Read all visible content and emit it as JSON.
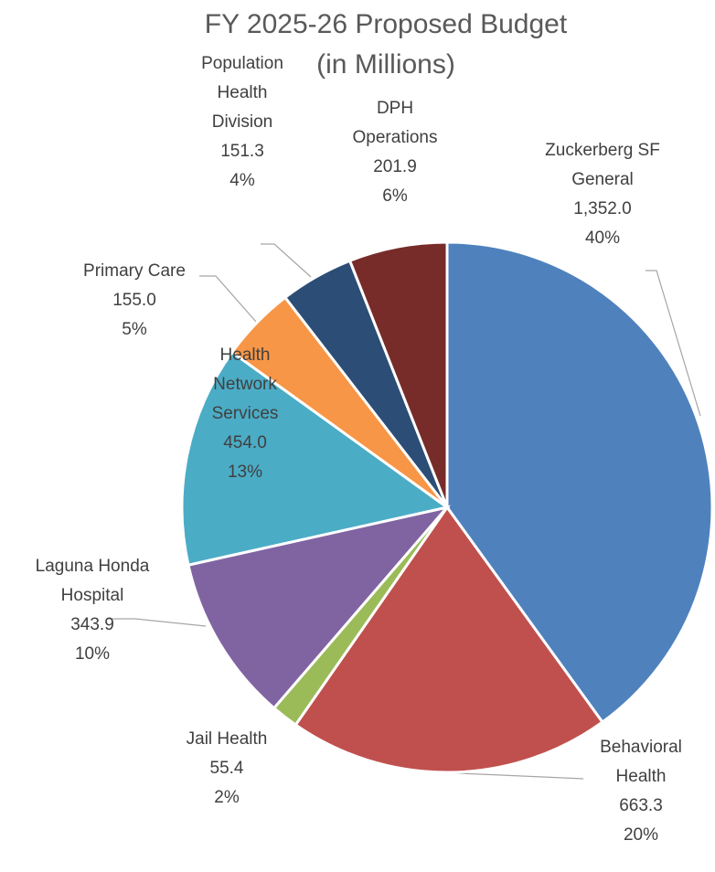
{
  "chart_data": {
    "type": "pie",
    "title": "FY 2025-26 Proposed Budget",
    "subtitle": "(in Millions)",
    "slices": [
      {
        "name_lines": [
          "Zuckerberg SF",
          "General"
        ],
        "value": 1352.0,
        "value_label": "1,352.0",
        "percent": "40%",
        "color": "#4F81BD"
      },
      {
        "name_lines": [
          "Behavioral",
          "Health"
        ],
        "value": 663.3,
        "value_label": "663.3",
        "percent": "20%",
        "color": "#C0504D"
      },
      {
        "name_lines": [
          "Jail Health"
        ],
        "value": 55.4,
        "value_label": "55.4",
        "percent": "2%",
        "color": "#9BBB59"
      },
      {
        "name_lines": [
          "Laguna Honda",
          "Hospital"
        ],
        "value": 343.9,
        "value_label": "343.9",
        "percent": "10%",
        "color": "#8064A2"
      },
      {
        "name_lines": [
          "Health",
          "Network",
          "Services"
        ],
        "value": 454.0,
        "value_label": "454.0",
        "percent": "13%",
        "color": "#4BACC6"
      },
      {
        "name_lines": [
          "Primary Care"
        ],
        "value": 155.0,
        "value_label": "155.0",
        "percent": "5%",
        "color": "#F79646"
      },
      {
        "name_lines": [
          "Population",
          "Health",
          "Division"
        ],
        "value": 151.3,
        "value_label": "151.3",
        "percent": "4%",
        "color": "#2C4D75"
      },
      {
        "name_lines": [
          "DPH",
          "Operations"
        ],
        "value": 201.9,
        "value_label": "201.9",
        "percent": "6%",
        "color": "#772C2A"
      }
    ]
  }
}
